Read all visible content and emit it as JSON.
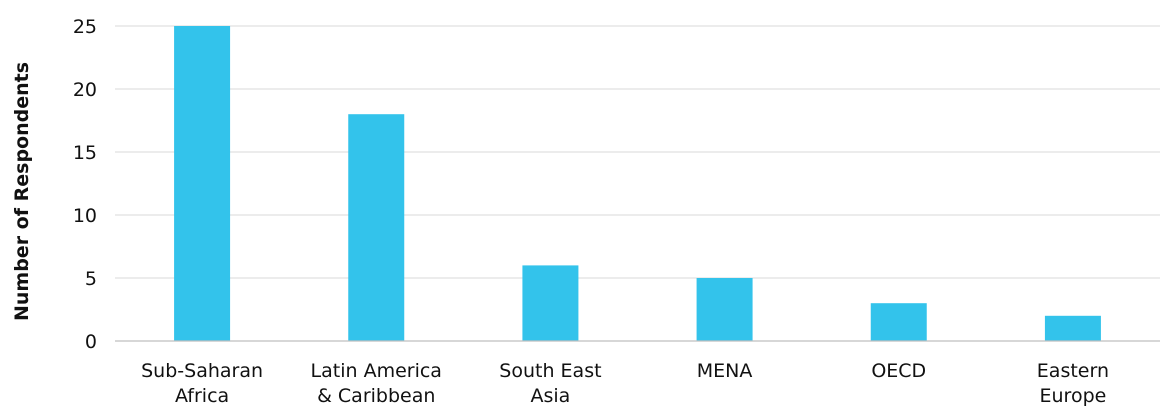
{
  "chart_data": {
    "type": "bar",
    "title": "",
    "xlabel": "",
    "ylabel": "Number of Respondents",
    "categories": [
      [
        "Sub-Saharan",
        "Africa"
      ],
      [
        "Latin America",
        "& Caribbean"
      ],
      [
        "South East",
        "Asia"
      ],
      [
        "MENA"
      ],
      [
        "OECD"
      ],
      [
        "Eastern",
        "Europe"
      ]
    ],
    "values": [
      25,
      18,
      6,
      5,
      3,
      2
    ],
    "ylim": [
      0,
      25
    ],
    "yticks": [
      0,
      5,
      10,
      15,
      20,
      25
    ],
    "grid": true,
    "bar_color": "#33c3eb"
  }
}
